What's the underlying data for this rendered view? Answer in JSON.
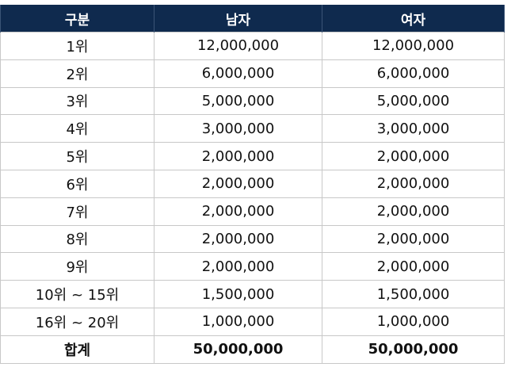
{
  "table": {
    "headers": [
      "구분",
      "남자",
      "여자"
    ],
    "rows": [
      [
        "1위",
        "12,000,000",
        "12,000,000"
      ],
      [
        "2위",
        "6,000,000",
        "6,000,000"
      ],
      [
        "3위",
        "5,000,000",
        "5,000,000"
      ],
      [
        "4위",
        "3,000,000",
        "3,000,000"
      ],
      [
        "5위",
        "2,000,000",
        "2,000,000"
      ],
      [
        "6위",
        "2,000,000",
        "2,000,000"
      ],
      [
        "7위",
        "2,000,000",
        "2,000,000"
      ],
      [
        "8위",
        "2,000,000",
        "2,000,000"
      ],
      [
        "9위",
        "2,000,000",
        "2,000,000"
      ],
      [
        "10위 ~ 15위",
        "1,500,000",
        "1,500,000"
      ],
      [
        "16위 ~ 20위",
        "1,000,000",
        "1,000,000"
      ]
    ],
    "total": [
      "합계",
      "50,000,000",
      "50,000,000"
    ]
  },
  "colors": {
    "header_bg": "#0f2a4e",
    "header_text": "#ffffff",
    "grid": "#c8c8c8"
  }
}
